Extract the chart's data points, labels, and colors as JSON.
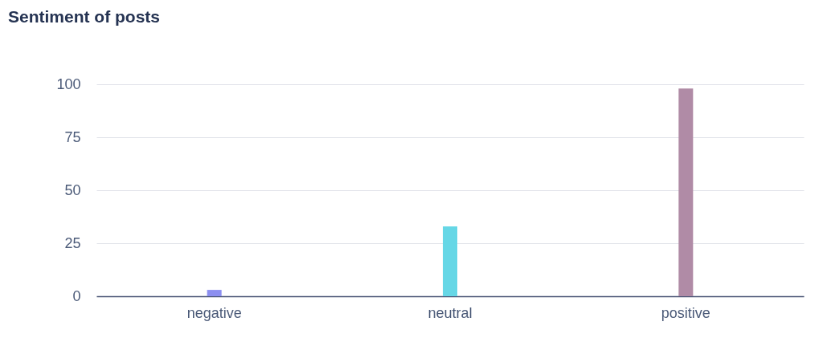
{
  "chart_data": {
    "type": "bar",
    "title": "Sentiment of posts",
    "categories": [
      "negative",
      "neutral",
      "positive"
    ],
    "values": [
      3,
      33,
      98
    ],
    "colors": [
      "#8c8ff0",
      "#66d7e6",
      "#b08ba6"
    ],
    "ylim": [
      0,
      100
    ],
    "yticks": [
      0,
      25,
      50,
      75,
      100
    ],
    "grid": "y"
  }
}
